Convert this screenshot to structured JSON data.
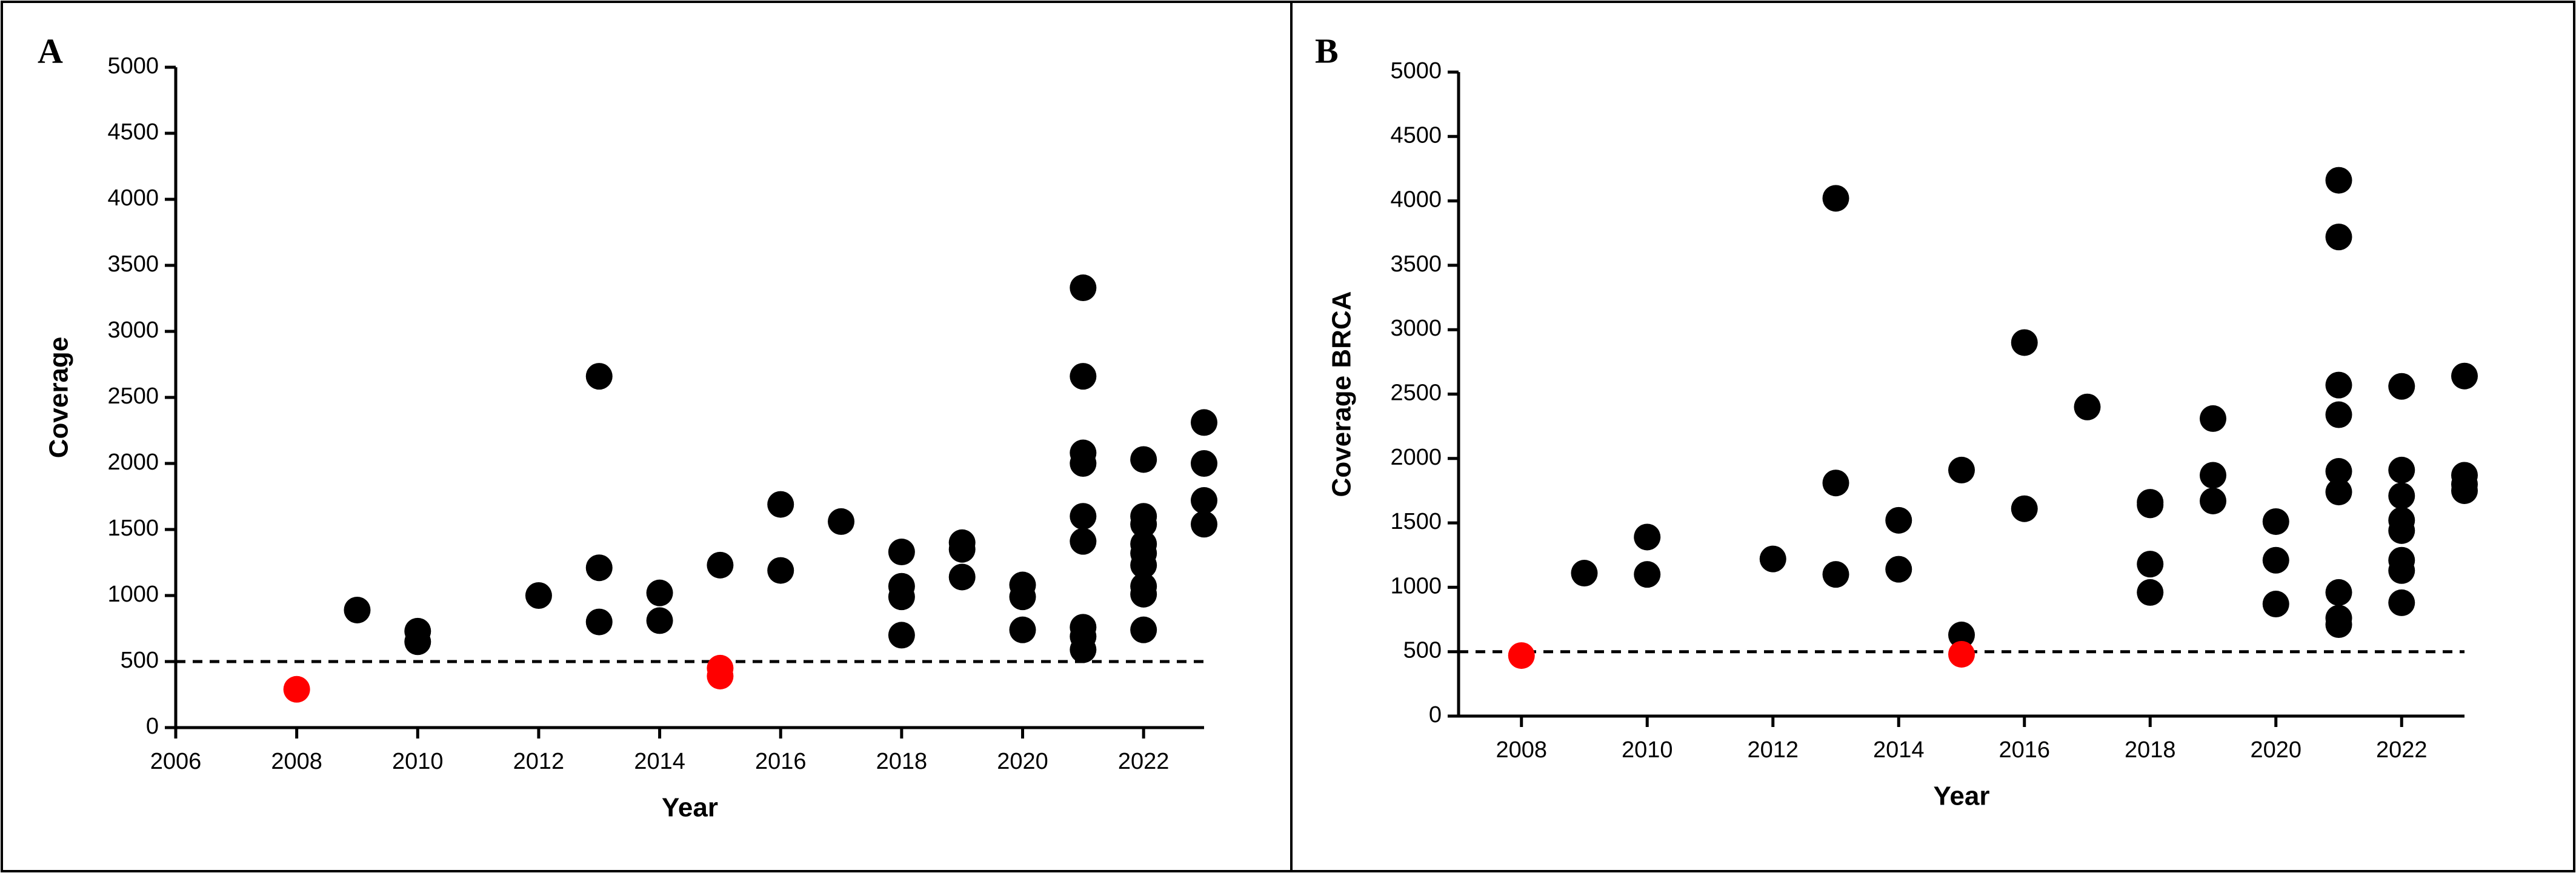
{
  "chart_data": [
    {
      "type": "scatter",
      "label": "A",
      "x_label": "Year",
      "y_label": "Coverage",
      "xlim": [
        2006,
        2023
      ],
      "xticks": [
        2006,
        2008,
        2010,
        2012,
        2014,
        2016,
        2018,
        2020,
        2022
      ],
      "ylim": [
        0,
        5000
      ],
      "yticks": [
        0,
        500,
        1000,
        1500,
        2000,
        2500,
        3000,
        3500,
        4000,
        4500,
        5000
      ],
      "reference_line": 500,
      "series": [
        {
          "color": "#000000",
          "x": [
            2009,
            2010,
            2010,
            2012,
            2013,
            2013,
            2013,
            2014,
            2014,
            2015,
            2016,
            2016,
            2017,
            2018,
            2018,
            2018,
            2018,
            2019,
            2019,
            2019,
            2020,
            2020,
            2020,
            2021,
            2021,
            2021,
            2021,
            2021,
            2021,
            2021,
            2021,
            2021,
            2022,
            2022,
            2022,
            2022,
            2022,
            2022,
            2022,
            2022,
            2022,
            2023,
            2023,
            2023,
            2023
          ],
          "values": [
            890,
            730,
            650,
            1000,
            2660,
            1210,
            800,
            1020,
            810,
            1230,
            1690,
            1190,
            1560,
            1330,
            1070,
            990,
            700,
            1400,
            1350,
            1140,
            1080,
            990,
            740,
            3330,
            2660,
            2080,
            2000,
            1600,
            1410,
            760,
            690,
            590,
            2030,
            1600,
            1540,
            1390,
            1320,
            1230,
            1070,
            1010,
            740,
            2310,
            2000,
            1720,
            1540
          ]
        },
        {
          "color": "#ff0000",
          "x": [
            2008,
            2015,
            2015
          ],
          "values": [
            290,
            450,
            390
          ]
        }
      ]
    },
    {
      "type": "scatter",
      "label": "B",
      "x_label": "Year",
      "y_label": "Coverage BRCA",
      "xlim": [
        2007,
        2023
      ],
      "xticks": [
        2008,
        2010,
        2012,
        2014,
        2016,
        2018,
        2020,
        2022
      ],
      "ylim": [
        0,
        5000
      ],
      "yticks": [
        0,
        500,
        1000,
        1500,
        2000,
        2500,
        3000,
        3500,
        4000,
        4500,
        5000
      ],
      "reference_line": 500,
      "series": [
        {
          "color": "#000000",
          "x": [
            2009,
            2010,
            2010,
            2012,
            2013,
            2013,
            2013,
            2014,
            2014,
            2015,
            2015,
            2016,
            2016,
            2017,
            2018,
            2018,
            2018,
            2018,
            2019,
            2019,
            2019,
            2020,
            2020,
            2020,
            2021,
            2021,
            2021,
            2021,
            2021,
            2021,
            2021,
            2021,
            2021,
            2022,
            2022,
            2022,
            2022,
            2022,
            2022,
            2022,
            2022,
            2023,
            2023,
            2023,
            2023
          ],
          "values": [
            1110,
            1390,
            1100,
            1220,
            4020,
            1810,
            1100,
            1520,
            1140,
            1910,
            630,
            2900,
            1610,
            2400,
            1660,
            1640,
            1180,
            960,
            2310,
            1870,
            1670,
            1510,
            1210,
            870,
            4160,
            3720,
            2570,
            2340,
            1900,
            1740,
            960,
            760,
            710,
            2560,
            1910,
            1710,
            1520,
            1440,
            1210,
            1130,
            880,
            2640,
            1870,
            1800,
            1750
          ]
        },
        {
          "color": "#ff0000",
          "x": [
            2008,
            2015
          ],
          "values": [
            470,
            480
          ]
        }
      ]
    }
  ]
}
